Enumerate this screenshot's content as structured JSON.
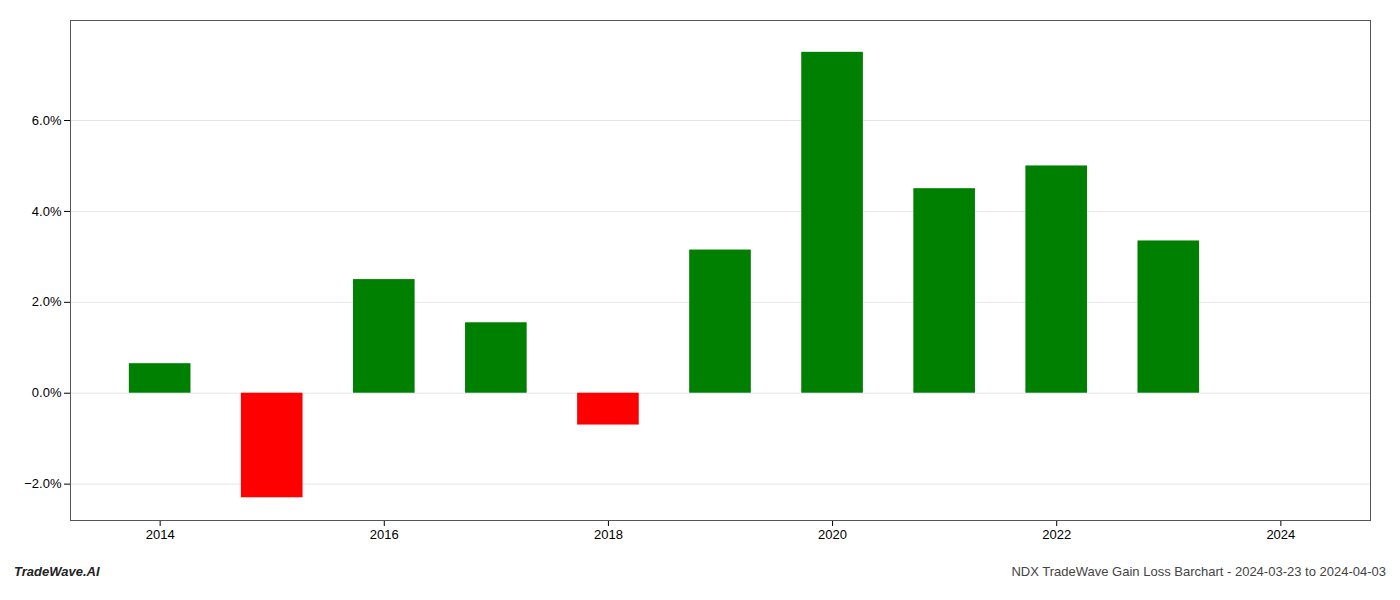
{
  "chart_data": {
    "type": "bar",
    "x": [
      2014,
      2015,
      2016,
      2017,
      2018,
      2019,
      2020,
      2021,
      2022,
      2023
    ],
    "values": [
      0.0065,
      -0.023,
      0.025,
      0.0155,
      -0.007,
      0.0315,
      0.075,
      0.045,
      0.05,
      0.0335
    ],
    "colors": [
      "#008000",
      "#ff0000",
      "#008000",
      "#008000",
      "#ff0000",
      "#008000",
      "#008000",
      "#008000",
      "#008000",
      "#008000"
    ],
    "xlim": [
      2013.2,
      2024.8
    ],
    "xticks": [
      2014,
      2016,
      2018,
      2020,
      2022,
      2024
    ],
    "ylim": [
      -0.028,
      0.082
    ],
    "yticks": [
      {
        "value": -0.02,
        "label": "−2.0%"
      },
      {
        "value": 0.0,
        "label": "0.0%"
      },
      {
        "value": 0.02,
        "label": "2.0%"
      },
      {
        "value": 0.04,
        "label": "4.0%"
      },
      {
        "value": 0.06,
        "label": "6.0%"
      }
    ],
    "grid": true,
    "annotations": [
      "TradeWave.AI",
      "NDX TradeWave Gain Loss Barchart - 2024-03-23 to 2024-04-03"
    ]
  }
}
